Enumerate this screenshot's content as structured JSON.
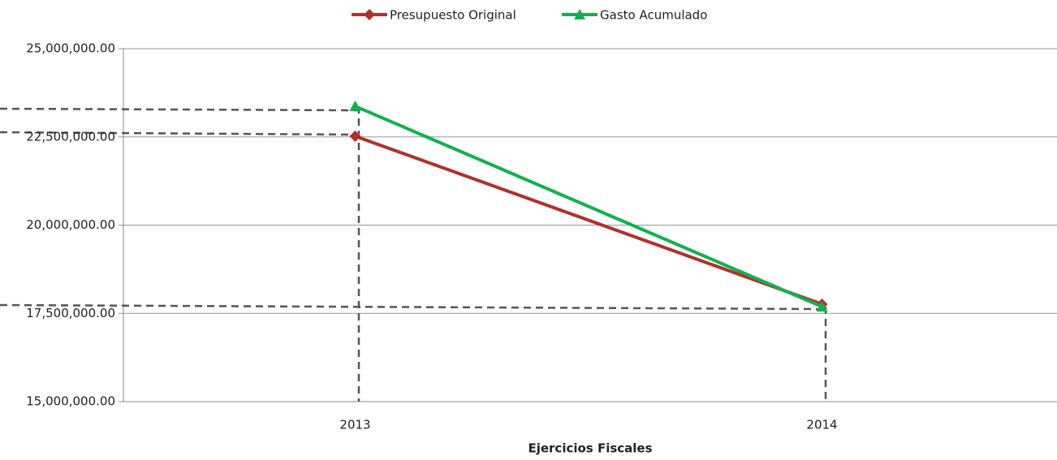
{
  "chart_data": {
    "type": "line",
    "x_label": "Ejercicios Fiscales",
    "categories": [
      "2013",
      "2014"
    ],
    "series": [
      {
        "name": "Presupuesto Original",
        "color": "#b22f2b",
        "marker": "diamond",
        "values": [
          22520000,
          17760000
        ]
      },
      {
        "name": "Gasto Acumulado",
        "color": "#12b04f",
        "marker": "triangle",
        "values": [
          23370000,
          17690000
        ]
      }
    ],
    "ylim": [
      15000000,
      25000000
    ],
    "yticks": [
      {
        "value": 15000000,
        "label": "15,000,000.00"
      },
      {
        "value": 17500000,
        "label": "17,500,000.00"
      },
      {
        "value": 20000000,
        "label": "20,000,000.00"
      },
      {
        "value": 22500000,
        "label": "22,500,000.00"
      },
      {
        "value": 25000000,
        "label": "25,000,000.00"
      }
    ],
    "grid": true,
    "legend": "top"
  }
}
